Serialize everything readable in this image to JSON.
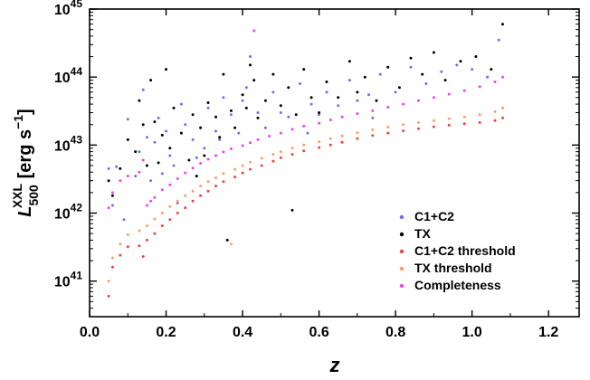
{
  "chart_data": {
    "type": "scatter",
    "x_axis": {
      "label": "z",
      "range": [
        0,
        1.28
      ],
      "ticks": [
        0.0,
        0.2,
        0.4,
        0.6,
        0.8,
        1.0,
        1.2
      ],
      "tick_labels": [
        "0.0",
        "0.2",
        "0.4",
        "0.6",
        "0.8",
        "1.0",
        "1.2"
      ]
    },
    "y_axis": {
      "label": "L_500^XXL [erg s^-1]",
      "label_parts": {
        "main": "L",
        "sub": "500",
        "sup": "XXL",
        "unit": " [erg s",
        "unit_sup": "−1",
        "unit_close": "]"
      },
      "scale": "log",
      "range": [
        3e+40,
        1e+45
      ],
      "ticks": [
        1e+41,
        1e+42,
        1e+43,
        1e+44,
        1e+45
      ],
      "tick_labels": [
        {
          "base": "10",
          "exp": "41"
        },
        {
          "base": "10",
          "exp": "42"
        },
        {
          "base": "10",
          "exp": "43"
        },
        {
          "base": "10",
          "exp": "44"
        },
        {
          "base": "10",
          "exp": "45"
        }
      ]
    },
    "grid": false,
    "legend": {
      "placement": "bottom-right"
    },
    "series": [
      {
        "name": "C1+C2",
        "color": "#6f6ff0",
        "points": [
          [
            0.05,
            4.5e+42
          ],
          [
            0.06,
            1.3e+42
          ],
          [
            0.07,
            4.8e+42
          ],
          [
            0.09,
            8e+41
          ],
          [
            0.1,
            2.4e+43
          ],
          [
            0.12,
            3.5e+42
          ],
          [
            0.13,
            8e+42
          ],
          [
            0.14,
            6.5e+43
          ],
          [
            0.15,
            1.3e+43
          ],
          [
            0.16,
            3e+42
          ],
          [
            0.17,
            1.1e+43
          ],
          [
            0.18,
            2.5e+43
          ],
          [
            0.19,
            3.8e+42
          ],
          [
            0.2,
            1.6e+43
          ],
          [
            0.21,
            7e+42
          ],
          [
            0.22,
            5e+42
          ],
          [
            0.24,
            4e+43
          ],
          [
            0.25,
            2e+43
          ],
          [
            0.27,
            1.2e+43
          ],
          [
            0.28,
            6.5e+42
          ],
          [
            0.3,
            9e+42
          ],
          [
            0.31,
            3.5e+43
          ],
          [
            0.33,
            1.6e+43
          ],
          [
            0.35,
            5e+43
          ],
          [
            0.37,
            2.8e+43
          ],
          [
            0.39,
            1.5e+43
          ],
          [
            0.4,
            4.5e+43
          ],
          [
            0.41,
            7e+43
          ],
          [
            0.42,
            2e+44
          ],
          [
            0.44,
            3e+43
          ],
          [
            0.46,
            1.8e+43
          ],
          [
            0.48,
            6e+43
          ],
          [
            0.5,
            3e+43
          ],
          [
            0.52,
            2.6e+43
          ],
          [
            0.55,
            8e+43
          ],
          [
            0.58,
            4e+43
          ],
          [
            0.6,
            2.8e+43
          ],
          [
            0.62,
            6e+43
          ],
          [
            0.65,
            3.8e+43
          ],
          [
            0.68,
            9e+43
          ],
          [
            0.7,
            4.5e+43
          ],
          [
            0.73,
            5.5e+43
          ],
          [
            0.76,
            1.1e+44
          ],
          [
            0.8,
            6e+43
          ],
          [
            0.84,
            1.4e+44
          ],
          [
            0.88,
            8e+43
          ],
          [
            0.92,
            1.2e+44
          ],
          [
            0.96,
            1.5e+44
          ],
          [
            1.0,
            1.3e+44
          ],
          [
            1.04,
            1e+44
          ],
          [
            1.07,
            3.5e+44
          ],
          [
            0.23,
            1.4e+42
          ],
          [
            0.34,
            1.2e+43
          ],
          [
            0.57,
            1.5e+43
          ],
          [
            0.74,
            2.5e+43
          ]
        ]
      },
      {
        "name": "TX",
        "color": "#000000",
        "points": [
          [
            0.05,
            3e+42
          ],
          [
            0.06,
            1.8e+42
          ],
          [
            0.08,
            4.5e+42
          ],
          [
            0.1,
            1.2e+43
          ],
          [
            0.12,
            8e+42
          ],
          [
            0.13,
            4.5e+43
          ],
          [
            0.14,
            2e+43
          ],
          [
            0.15,
            5e+42
          ],
          [
            0.16,
            9e+43
          ],
          [
            0.17,
            2.2e+43
          ],
          [
            0.18,
            5.5e+42
          ],
          [
            0.19,
            1.4e+43
          ],
          [
            0.2,
            1.3e+44
          ],
          [
            0.21,
            9e+42
          ],
          [
            0.22,
            3.5e+43
          ],
          [
            0.24,
            1.5e+43
          ],
          [
            0.26,
            6e+42
          ],
          [
            0.27,
            2.8e+43
          ],
          [
            0.29,
            1.8e+43
          ],
          [
            0.3,
            7e+42
          ],
          [
            0.31,
            4.2e+43
          ],
          [
            0.33,
            2.6e+43
          ],
          [
            0.34,
            1.3e+43
          ],
          [
            0.35,
            1.1e+44
          ],
          [
            0.37,
            3.2e+43
          ],
          [
            0.38,
            1.8e+43
          ],
          [
            0.4,
            5.5e+43
          ],
          [
            0.41,
            3.5e+43
          ],
          [
            0.42,
            1.5e+44
          ],
          [
            0.43,
            9e+43
          ],
          [
            0.44,
            2.5e+43
          ],
          [
            0.46,
            4.5e+43
          ],
          [
            0.48,
            1.1e+44
          ],
          [
            0.5,
            3.8e+43
          ],
          [
            0.52,
            7e+43
          ],
          [
            0.54,
            2.8e+43
          ],
          [
            0.56,
            1.3e+44
          ],
          [
            0.58,
            5e+43
          ],
          [
            0.6,
            3e+43
          ],
          [
            0.62,
            8.5e+43
          ],
          [
            0.65,
            5e+43
          ],
          [
            0.68,
            1.7e+44
          ],
          [
            0.7,
            6e+43
          ],
          [
            0.72,
            1e+44
          ],
          [
            0.75,
            4.5e+43
          ],
          [
            0.78,
            1.4e+44
          ],
          [
            0.81,
            7e+43
          ],
          [
            0.84,
            1.9e+44
          ],
          [
            0.87,
            1.1e+44
          ],
          [
            0.9,
            2.3e+44
          ],
          [
            0.93,
            9e+43
          ],
          [
            0.97,
            1.7e+44
          ],
          [
            1.01,
            2e+44
          ],
          [
            1.05,
            1.3e+44
          ],
          [
            1.08,
            6e+44
          ],
          [
            0.28,
            3.5e+42
          ],
          [
            0.36,
            4e+41
          ],
          [
            0.53,
            1.1e+42
          ]
        ]
      },
      {
        "name": "C1+C2 threshold",
        "color": "#ee4444",
        "points": [
          [
            0.05,
            6e+40
          ],
          [
            0.06,
            1.6e+41
          ],
          [
            0.08,
            2.4e+41
          ],
          [
            0.1,
            3.2e+41
          ],
          [
            0.13,
            3.3e+41
          ],
          [
            0.14,
            2.3e+41
          ],
          [
            0.15,
            4e+41
          ],
          [
            0.17,
            5e+41
          ],
          [
            0.19,
            6.5e+41
          ],
          [
            0.21,
            8e+41
          ],
          [
            0.23,
            1e+42
          ],
          [
            0.25,
            1.2e+42
          ],
          [
            0.27,
            1.5e+42
          ],
          [
            0.29,
            1.8e+42
          ],
          [
            0.31,
            2.1e+42
          ],
          [
            0.33,
            2.5e+42
          ],
          [
            0.35,
            2.9e+42
          ],
          [
            0.38,
            3.4e+42
          ],
          [
            0.4,
            3.9e+42
          ],
          [
            0.42,
            4.4e+42
          ],
          [
            0.45,
            5e+42
          ],
          [
            0.48,
            5.8e+42
          ],
          [
            0.5,
            6.5e+42
          ],
          [
            0.53,
            7.3e+42
          ],
          [
            0.56,
            8.2e+42
          ],
          [
            0.6,
            9.2e+42
          ],
          [
            0.63,
            1e+43
          ],
          [
            0.66,
            1.1e+43
          ],
          [
            0.7,
            1.25e+43
          ],
          [
            0.74,
            1.38e+43
          ],
          [
            0.78,
            1.5e+43
          ],
          [
            0.82,
            1.62e+43
          ],
          [
            0.86,
            1.74e+43
          ],
          [
            0.9,
            1.86e+43
          ],
          [
            0.94,
            1.96e+43
          ],
          [
            0.98,
            2.06e+43
          ],
          [
            1.02,
            2.15e+43
          ],
          [
            1.06,
            2.3e+43
          ],
          [
            1.08,
            2.5e+43
          ]
        ]
      },
      {
        "name": "TX threshold",
        "color": "#ffa060",
        "points": [
          [
            0.05,
            1e+41
          ],
          [
            0.06,
            2.2e+41
          ],
          [
            0.08,
            3.5e+41
          ],
          [
            0.1,
            4.8e+41
          ],
          [
            0.13,
            5.5e+41
          ],
          [
            0.15,
            6.5e+41
          ],
          [
            0.17,
            8.2e+41
          ],
          [
            0.19,
            1e+42
          ],
          [
            0.21,
            1.25e+42
          ],
          [
            0.23,
            1.5e+42
          ],
          [
            0.25,
            1.8e+42
          ],
          [
            0.27,
            2.1e+42
          ],
          [
            0.29,
            2.5e+42
          ],
          [
            0.31,
            2.9e+42
          ],
          [
            0.33,
            3.3e+42
          ],
          [
            0.35,
            3.8e+42
          ],
          [
            0.38,
            4.4e+42
          ],
          [
            0.4,
            5e+42
          ],
          [
            0.42,
            5.6e+42
          ],
          [
            0.45,
            6.4e+42
          ],
          [
            0.48,
            7.3e+42
          ],
          [
            0.5,
            8e+42
          ],
          [
            0.53,
            9e+42
          ],
          [
            0.56,
            1e+43
          ],
          [
            0.6,
            1.12e+43
          ],
          [
            0.63,
            1.24e+43
          ],
          [
            0.66,
            1.36e+43
          ],
          [
            0.7,
            1.52e+43
          ],
          [
            0.74,
            1.68e+43
          ],
          [
            0.78,
            1.84e+43
          ],
          [
            0.82,
            2e+43
          ],
          [
            0.86,
            2.15e+43
          ],
          [
            0.9,
            2.3e+43
          ],
          [
            0.94,
            2.45e+43
          ],
          [
            0.98,
            2.6e+43
          ],
          [
            1.02,
            2.8e+43
          ],
          [
            1.06,
            3.1e+43
          ],
          [
            1.08,
            3.5e+43
          ],
          [
            0.37,
            3.5e+41
          ]
        ]
      },
      {
        "name": "Completeness",
        "color": "#ee44ee",
        "points": [
          [
            0.05,
            1.2e+42
          ],
          [
            0.06,
            2e+42
          ],
          [
            0.08,
            3e+42
          ],
          [
            0.1,
            3.5e+42
          ],
          [
            0.13,
            4e+42
          ],
          [
            0.14,
            6e+42
          ],
          [
            0.15,
            1.3e+42
          ],
          [
            0.16,
            1.5e+42
          ],
          [
            0.17,
            1.7e+42
          ],
          [
            0.19,
            2.2e+42
          ],
          [
            0.21,
            2.6e+42
          ],
          [
            0.23,
            3.2e+42
          ],
          [
            0.25,
            3.9e+42
          ],
          [
            0.27,
            4.6e+42
          ],
          [
            0.29,
            5.4e+42
          ],
          [
            0.31,
            6.2e+42
          ],
          [
            0.33,
            7e+42
          ],
          [
            0.35,
            7.9e+42
          ],
          [
            0.37,
            8.8e+42
          ],
          [
            0.4,
            9.8e+42
          ],
          [
            0.42,
            1.08e+43
          ],
          [
            0.44,
            1.2e+43
          ],
          [
            0.47,
            1.35e+43
          ],
          [
            0.5,
            1.5e+43
          ],
          [
            0.53,
            1.7e+43
          ],
          [
            0.56,
            1.9e+43
          ],
          [
            0.6,
            2.1e+43
          ],
          [
            0.63,
            2.35e+43
          ],
          [
            0.66,
            2.6e+43
          ],
          [
            0.7,
            2.9e+43
          ],
          [
            0.74,
            3.2e+43
          ],
          [
            0.78,
            3.6e+43
          ],
          [
            0.82,
            4e+43
          ],
          [
            0.86,
            4.5e+43
          ],
          [
            0.9,
            5e+43
          ],
          [
            0.94,
            5.6e+43
          ],
          [
            0.98,
            6.3e+43
          ],
          [
            1.02,
            7.2e+43
          ],
          [
            1.06,
            8.5e+43
          ],
          [
            1.08,
            1e+44
          ],
          [
            0.43,
            4.8e+44
          ]
        ]
      }
    ]
  }
}
